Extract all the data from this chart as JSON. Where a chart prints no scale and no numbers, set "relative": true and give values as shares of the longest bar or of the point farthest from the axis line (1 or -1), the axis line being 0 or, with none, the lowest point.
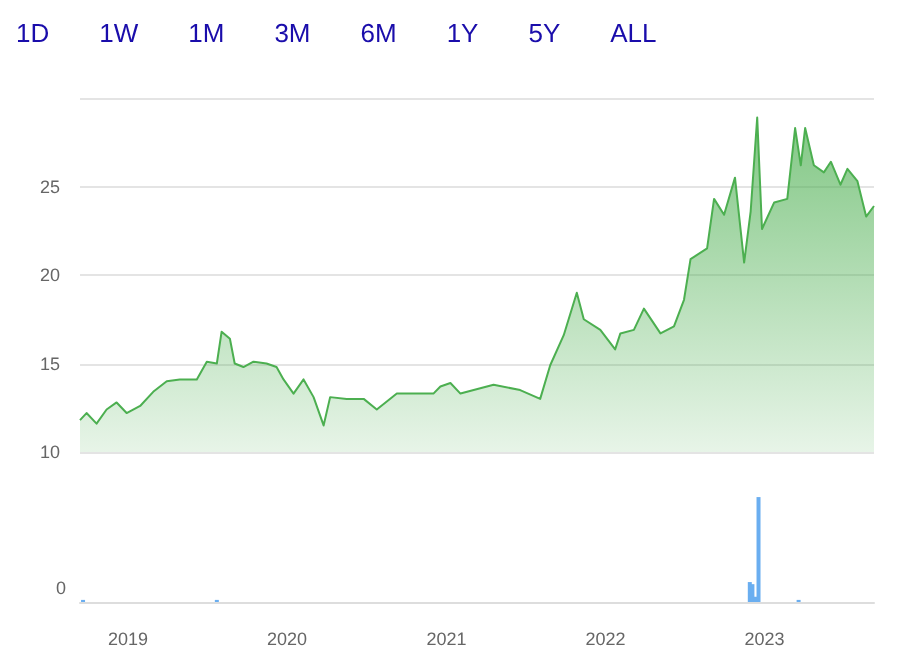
{
  "chart_data": [
    {
      "type": "area",
      "annotations": [
        "1D",
        "1W",
        "1M",
        "3M",
        "6M",
        "1Y",
        "5Y",
        "ALL"
      ],
      "x": [
        "2018-09-13",
        "2018-09-28",
        "2018-10-21",
        "2018-11-13",
        "2018-12-06",
        "2018-12-29",
        "2019-01-29",
        "2019-02-28",
        "2019-03-31",
        "2019-04-30",
        "2019-06-08",
        "2019-07-01",
        "2019-07-24",
        "2019-08-04",
        "2019-08-23",
        "2019-09-03",
        "2019-09-23",
        "2019-10-16",
        "2019-11-15",
        "2019-12-08",
        "2019-12-24",
        "2020-01-16",
        "2020-02-08",
        "2020-03-02",
        "2020-03-25",
        "2020-04-09",
        "2020-05-17",
        "2020-06-25",
        "2020-07-25",
        "2020-09-09",
        "2020-10-18",
        "2020-12-02",
        "2020-12-18",
        "2021-01-10",
        "2021-02-02",
        "2021-04-19",
        "2021-06-19",
        "2021-08-04",
        "2021-08-27",
        "2021-09-27",
        "2021-10-27",
        "2021-11-12",
        "2021-12-20",
        "2022-01-23",
        "2022-02-04",
        "2022-03-07",
        "2022-03-30",
        "2022-05-07",
        "2022-06-07",
        "2022-06-30",
        "2022-07-15",
        "2022-08-22",
        "2022-09-07",
        "2022-09-30",
        "2022-10-25",
        "2022-11-15",
        "2022-11-30",
        "2022-12-15",
        "2022-12-26",
        "2023-01-23",
        "2023-02-22",
        "2023-03-12",
        "2023-03-25",
        "2023-04-04",
        "2023-04-24",
        "2023-05-17",
        "2023-06-02",
        "2023-06-24",
        "2023-07-10",
        "2023-08-02",
        "2023-08-22",
        "2023-09-09"
      ],
      "series": [
        {
          "color": "#4caf50",
          "values": [
            11.8,
            12.2,
            11.6,
            12.4,
            12.8,
            12.2,
            12.6,
            13.4,
            14.0,
            14.1,
            14.1,
            15.1,
            15.0,
            16.8,
            16.4,
            15.0,
            14.8,
            15.1,
            15.0,
            14.8,
            14.1,
            13.3,
            14.1,
            13.1,
            11.5,
            13.1,
            13.0,
            13.0,
            12.4,
            13.3,
            13.3,
            13.3,
            13.7,
            13.9,
            13.3,
            13.8,
            13.5,
            13.0,
            14.9,
            16.6,
            19.0,
            17.5,
            16.9,
            15.8,
            16.7,
            16.9,
            18.1,
            16.7,
            17.1,
            18.6,
            20.9,
            21.5,
            24.3,
            23.4,
            25.5,
            20.7,
            23.6,
            28.9,
            22.6,
            24.1,
            24.3,
            28.3,
            26.2,
            28.3,
            26.2,
            25.8,
            26.4,
            25.1,
            26.0,
            25.3,
            23.3,
            23.9
          ]
        }
      ],
      "xlim": [
        "2018-09-13",
        "2023-09-09"
      ],
      "ylim": [
        10,
        30
      ],
      "yticks": [
        10,
        15,
        20,
        25
      ],
      "grid": "y",
      "tick_labels": "y"
    },
    {
      "type": "bar",
      "relative": true,
      "annotations": [
        "0"
      ],
      "x": [
        "2018-09-20",
        "2019-07-24",
        "2022-11-28",
        "2022-12-04",
        "2022-12-10",
        "2022-12-18",
        "2023-03-20"
      ],
      "series": [
        {
          "color": "#6aaef0",
          "values": [
            0.02,
            0.02,
            0.19,
            0.17,
            0.05,
            1,
            0.02
          ]
        }
      ],
      "xlim": [
        "2018-09-13",
        "2023-09-09"
      ],
      "xticks": [
        {
          "value": "2019-01-01",
          "label": "2019"
        },
        {
          "value": "2020-01-01",
          "label": "2020"
        },
        {
          "value": "2021-01-01",
          "label": "2021"
        },
        {
          "value": "2022-01-01",
          "label": "2022"
        },
        {
          "value": "2023-01-01",
          "label": "2023"
        }
      ],
      "tick_labels": "x"
    }
  ]
}
